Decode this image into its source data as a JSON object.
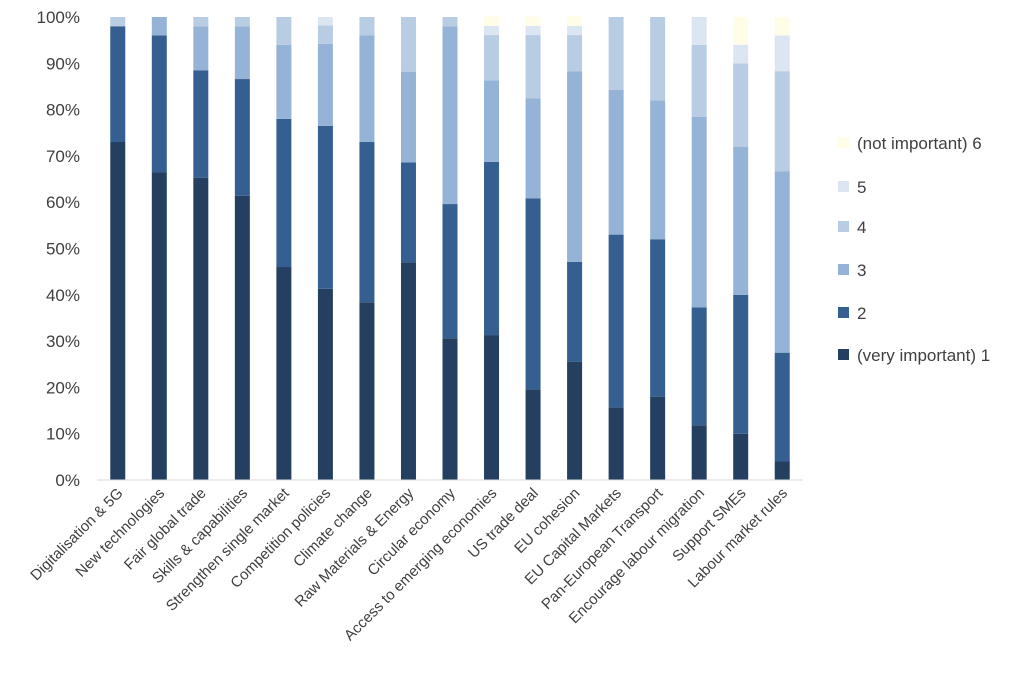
{
  "chart_data": {
    "type": "bar",
    "stacked": true,
    "percent": true,
    "categories": [
      "Digitalisation & 5G",
      "New technologies",
      "Fair global trade",
      "Skills & capabilities",
      "Strengthen single market",
      "Competition policies",
      "Climate change",
      "Raw Materials & Energy",
      "Circular economy",
      "Access to emerging economies",
      "US trade deal",
      "EU cohesion",
      "EU Capital Markets",
      "Pan-European Transport",
      "Encourage labour migration",
      "Support SMEs",
      "Labour market rules"
    ],
    "series": [
      {
        "name": "(very important) 1",
        "color": "#243f60",
        "values": [
          73,
          66.5,
          65.3,
          61.4,
          46,
          41.3,
          38.4,
          47,
          30.6,
          31.3,
          19.6,
          25.5,
          15.7,
          18,
          11.8,
          10,
          4
        ]
      },
      {
        "name": "2",
        "color": "#365f91",
        "values": [
          25,
          29.5,
          23.2,
          25.2,
          32,
          35.2,
          34.6,
          21.6,
          29,
          37.4,
          41.2,
          21.6,
          37.3,
          34,
          25.5,
          30,
          23.5
        ]
      },
      {
        "name": "3",
        "color": "#95b3d7",
        "values": [
          0,
          4,
          9.5,
          11.4,
          16,
          17.7,
          23,
          19.6,
          38.4,
          17.6,
          21.6,
          41.2,
          31.3,
          30,
          41.1,
          32,
          39.2
        ]
      },
      {
        "name": "4",
        "color": "#b8cce4",
        "values": [
          2,
          0,
          2,
          2,
          6,
          4,
          4,
          11.8,
          2,
          9.8,
          13.7,
          7.8,
          15.7,
          18,
          15.6,
          18,
          21.6
        ]
      },
      {
        "name": "5",
        "color": "#dce6f2",
        "values": [
          0,
          0,
          0,
          0,
          0,
          1.8,
          0,
          0,
          0,
          2,
          2,
          2,
          0,
          0,
          6,
          4,
          7.7
        ]
      },
      {
        "name": "(not important) 6",
        "color": "#fffde8",
        "values": [
          0,
          0,
          0,
          0,
          0,
          0,
          0,
          0,
          0,
          2,
          2,
          2,
          0,
          0,
          0,
          6,
          4
        ]
      }
    ],
    "y_ticks": [
      "0%",
      "10%",
      "20%",
      "30%",
      "40%",
      "50%",
      "60%",
      "70%",
      "80%",
      "90%",
      "100%"
    ],
    "ylim": [
      0,
      100
    ],
    "grid": false,
    "legend_position": "right"
  }
}
